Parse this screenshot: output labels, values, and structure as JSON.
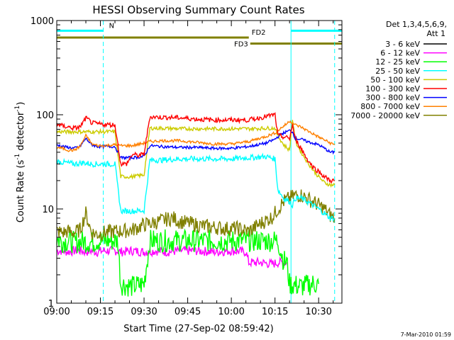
{
  "chart_data": {
    "type": "line",
    "title": "HESSI Observing Summary Count Rates",
    "xlabel": "Start Time (27-Sep-02 08:59:42)",
    "ylabel_main": "Count Rate (s",
    "ylabel_sup1": "-1",
    "ylabel_mid": " detector",
    "ylabel_sup2": "-1",
    "ylabel_end": ")",
    "yscale": "log",
    "ylim": [
      1,
      1000
    ],
    "xlim": [
      "09:00",
      "10:38"
    ],
    "xticks": [
      {
        "t": 0,
        "label": "09:00"
      },
      {
        "t": 15,
        "label": "09:15"
      },
      {
        "t": 30,
        "label": "09:30"
      },
      {
        "t": 45,
        "label": "09:45"
      },
      {
        "t": 60,
        "label": "10:00"
      },
      {
        "t": 75,
        "label": "10:15"
      },
      {
        "t": 90,
        "label": "10:30"
      }
    ],
    "yticks": [
      {
        "v": 1,
        "label": "1"
      },
      {
        "v": 10,
        "label": "10"
      },
      {
        "v": 100,
        "label": "100"
      },
      {
        "v": 1000,
        "label": "1000"
      }
    ],
    "legend": {
      "header1": "Det 1,3,4,5,6,9,",
      "header2": "Att 1",
      "position": "right"
    },
    "footer": "7-Mar-2010 01:59",
    "flags": [
      {
        "label": "N",
        "color": "#00ffff",
        "segments": [
          [
            0,
            16
          ],
          [
            80.5,
            98
          ]
        ],
        "level": 780
      },
      {
        "label": "FD2",
        "color": "#808000",
        "segments": [
          [
            0,
            66
          ]
        ],
        "level": 660
      },
      {
        "label": "FD3",
        "color": "#808000",
        "segments": [
          [
            66.5,
            98
          ]
        ],
        "level": 570
      }
    ],
    "series": [
      {
        "name": "3 - 6 keV",
        "color": "#000000",
        "noise": 0.0,
        "points": []
      },
      {
        "name": "6 - 12 keV",
        "color": "#ff00ff",
        "noise": 0.05,
        "points": [
          [
            0,
            3.6
          ],
          [
            2,
            3.6
          ],
          [
            4,
            3.5
          ],
          [
            6,
            3.6
          ],
          [
            8,
            3.6
          ],
          [
            10,
            3.5
          ],
          [
            12,
            3.6
          ],
          [
            14,
            3.5
          ],
          [
            16,
            3.6
          ],
          [
            21,
            3.6
          ],
          [
            22,
            3.5
          ],
          [
            26,
            3.6
          ],
          [
            30,
            3.5
          ],
          [
            34,
            3.6
          ],
          [
            38,
            3.5
          ],
          [
            42,
            3.6
          ],
          [
            48,
            3.6
          ],
          [
            54,
            3.5
          ],
          [
            60,
            3.6
          ],
          [
            65,
            3.5
          ],
          [
            66,
            2.7
          ],
          [
            70,
            2.7
          ],
          [
            74,
            2.6
          ],
          [
            76,
            2.7
          ],
          [
            79,
            2.7
          ]
        ]
      },
      {
        "name": "12 - 25 keV",
        "color": "#00ff00",
        "noise": 0.12,
        "points": [
          [
            0,
            4.8
          ],
          [
            2,
            4.5
          ],
          [
            4,
            4.6
          ],
          [
            6,
            4.4
          ],
          [
            8,
            4.5
          ],
          [
            10,
            4.5
          ],
          [
            12,
            4.4
          ],
          [
            14,
            4.6
          ],
          [
            16,
            4.6
          ],
          [
            21,
            4.6
          ],
          [
            22,
            1.6
          ],
          [
            26,
            1.5
          ],
          [
            30,
            1.6
          ],
          [
            32,
            4.6
          ],
          [
            36,
            4.6
          ],
          [
            42,
            4.6
          ],
          [
            48,
            4.6
          ],
          [
            54,
            4.6
          ],
          [
            60,
            4.6
          ],
          [
            66,
            4.6
          ],
          [
            72,
            4.6
          ],
          [
            76,
            4.6
          ],
          [
            78,
            2.8
          ],
          [
            79,
            2.8
          ],
          [
            80,
            1.6
          ],
          [
            84,
            1.5
          ],
          [
            88,
            1.6
          ],
          [
            90,
            1.6
          ]
        ]
      },
      {
        "name": "25 - 50 keV",
        "color": "#00ffff",
        "noise": 0.03,
        "points": [
          [
            0,
            32
          ],
          [
            3,
            31
          ],
          [
            6,
            30
          ],
          [
            9,
            31
          ],
          [
            12,
            30
          ],
          [
            16,
            30
          ],
          [
            20,
            30
          ],
          [
            22,
            9.5
          ],
          [
            26,
            9.5
          ],
          [
            30,
            9.6
          ],
          [
            32,
            33
          ],
          [
            36,
            33
          ],
          [
            42,
            34
          ],
          [
            48,
            34
          ],
          [
            54,
            34
          ],
          [
            60,
            34
          ],
          [
            66,
            35
          ],
          [
            72,
            36
          ],
          [
            75,
            34
          ],
          [
            76,
            16
          ],
          [
            78,
            13
          ],
          [
            80,
            12
          ],
          [
            81,
            11
          ],
          [
            82,
            13
          ],
          [
            84,
            13
          ],
          [
            86,
            12
          ],
          [
            88,
            11
          ],
          [
            90,
            10
          ],
          [
            92,
            9
          ],
          [
            94,
            8
          ],
          [
            95.5,
            8
          ]
        ]
      },
      {
        "name": "50 - 100 keV",
        "color": "#cccc00",
        "noise": 0.02,
        "points": [
          [
            0,
            66
          ],
          [
            3,
            66
          ],
          [
            6,
            66
          ],
          [
            9,
            66
          ],
          [
            12,
            66
          ],
          [
            16,
            66
          ],
          [
            20,
            66
          ],
          [
            22,
            22
          ],
          [
            26,
            22
          ],
          [
            30,
            23
          ],
          [
            32,
            72
          ],
          [
            36,
            72
          ],
          [
            42,
            71
          ],
          [
            48,
            71
          ],
          [
            54,
            71
          ],
          [
            60,
            71
          ],
          [
            66,
            71
          ],
          [
            72,
            72
          ],
          [
            75,
            72
          ],
          [
            76,
            60
          ],
          [
            78,
            48
          ],
          [
            80,
            42
          ],
          [
            81,
            90
          ],
          [
            82,
            52
          ],
          [
            84,
            40
          ],
          [
            86,
            32
          ],
          [
            88,
            26
          ],
          [
            90,
            22
          ],
          [
            92,
            19
          ],
          [
            94,
            18
          ],
          [
            95.5,
            18
          ]
        ]
      },
      {
        "name": "100 - 300 keV",
        "color": "#ff0000",
        "noise": 0.025,
        "points": [
          [
            0,
            80
          ],
          [
            2,
            76
          ],
          [
            4,
            74
          ],
          [
            6,
            72
          ],
          [
            8,
            74
          ],
          [
            10,
            92
          ],
          [
            11,
            88
          ],
          [
            12,
            82
          ],
          [
            14,
            80
          ],
          [
            16,
            79
          ],
          [
            20,
            78
          ],
          [
            22,
            30
          ],
          [
            24,
            30
          ],
          [
            26,
            38
          ],
          [
            28,
            37
          ],
          [
            30,
            38
          ],
          [
            32,
            95
          ],
          [
            36,
            94
          ],
          [
            42,
            93
          ],
          [
            48,
            90
          ],
          [
            54,
            88
          ],
          [
            60,
            88
          ],
          [
            66,
            88
          ],
          [
            72,
            96
          ],
          [
            75,
            100
          ],
          [
            76,
            60
          ],
          [
            78,
            58
          ],
          [
            80,
            56
          ],
          [
            81,
            78
          ],
          [
            82,
            55
          ],
          [
            84,
            44
          ],
          [
            86,
            34
          ],
          [
            88,
            28
          ],
          [
            90,
            25
          ],
          [
            92,
            22
          ],
          [
            94,
            20
          ],
          [
            95.5,
            20
          ]
        ]
      },
      {
        "name": "300 - 800 keV",
        "color": "#0000ff",
        "noise": 0.015,
        "points": [
          [
            0,
            48
          ],
          [
            2,
            46
          ],
          [
            4,
            45
          ],
          [
            6,
            44
          ],
          [
            8,
            46
          ],
          [
            10,
            56
          ],
          [
            11,
            52
          ],
          [
            12,
            48
          ],
          [
            14,
            46
          ],
          [
            16,
            46
          ],
          [
            20,
            46
          ],
          [
            22,
            35
          ],
          [
            26,
            35
          ],
          [
            30,
            36
          ],
          [
            32,
            47
          ],
          [
            36,
            46
          ],
          [
            42,
            45
          ],
          [
            48,
            45
          ],
          [
            54,
            44
          ],
          [
            60,
            44
          ],
          [
            66,
            46
          ],
          [
            72,
            50
          ],
          [
            75,
            55
          ],
          [
            77,
            62
          ],
          [
            79,
            66
          ],
          [
            80,
            68
          ],
          [
            81,
            66
          ],
          [
            82,
            56
          ],
          [
            84,
            55
          ],
          [
            86,
            52
          ],
          [
            88,
            50
          ],
          [
            90,
            48
          ],
          [
            92,
            44
          ],
          [
            94,
            40
          ],
          [
            95.5,
            40
          ]
        ]
      },
      {
        "name": "800 - 7000 keV",
        "color": "#ff8000",
        "noise": 0.015,
        "points": [
          [
            0,
            45
          ],
          [
            2,
            44
          ],
          [
            4,
            42
          ],
          [
            6,
            42
          ],
          [
            8,
            46
          ],
          [
            10,
            60
          ],
          [
            11,
            55
          ],
          [
            12,
            49
          ],
          [
            14,
            47
          ],
          [
            16,
            47
          ],
          [
            20,
            48
          ],
          [
            22,
            47
          ],
          [
            26,
            47
          ],
          [
            30,
            50
          ],
          [
            32,
            52
          ],
          [
            36,
            53
          ],
          [
            42,
            53
          ],
          [
            48,
            51
          ],
          [
            54,
            49
          ],
          [
            60,
            49
          ],
          [
            66,
            52
          ],
          [
            72,
            59
          ],
          [
            75,
            64
          ],
          [
            77,
            72
          ],
          [
            79,
            80
          ],
          [
            80,
            86
          ],
          [
            81,
            82
          ],
          [
            82,
            78
          ],
          [
            84,
            74
          ],
          [
            86,
            68
          ],
          [
            88,
            63
          ],
          [
            90,
            58
          ],
          [
            92,
            54
          ],
          [
            94,
            50
          ],
          [
            95.5,
            48
          ]
        ]
      },
      {
        "name": "7000 - 20000 keV",
        "color": "#808000",
        "noise": 0.08,
        "points": [
          [
            0,
            5.8
          ],
          [
            2,
            5.6
          ],
          [
            4,
            5.8
          ],
          [
            6,
            5.6
          ],
          [
            8,
            6
          ],
          [
            10,
            9
          ],
          [
            11,
            7
          ],
          [
            12,
            5.6
          ],
          [
            14,
            5.4
          ],
          [
            16,
            5.6
          ],
          [
            20,
            5.8
          ],
          [
            22,
            5.8
          ],
          [
            26,
            6
          ],
          [
            30,
            6.8
          ],
          [
            34,
            7.2
          ],
          [
            38,
            7.8
          ],
          [
            40,
            8
          ],
          [
            42,
            7.4
          ],
          [
            46,
            7
          ],
          [
            50,
            6.6
          ],
          [
            54,
            6.4
          ],
          [
            58,
            6.2
          ],
          [
            62,
            6.2
          ],
          [
            66,
            5.8
          ],
          [
            70,
            7
          ],
          [
            74,
            8.2
          ],
          [
            76,
            10
          ],
          [
            78,
            12
          ],
          [
            80,
            13
          ],
          [
            82,
            14
          ],
          [
            84,
            14
          ],
          [
            86,
            13
          ],
          [
            88,
            12
          ],
          [
            90,
            11
          ],
          [
            92,
            10
          ],
          [
            94,
            8.5
          ],
          [
            95.5,
            8
          ]
        ]
      }
    ],
    "vlines": [
      {
        "t": 16,
        "dashed": true
      },
      {
        "t": 80.5,
        "dashed": false
      },
      {
        "t": 95.5,
        "dashed": true
      }
    ]
  }
}
